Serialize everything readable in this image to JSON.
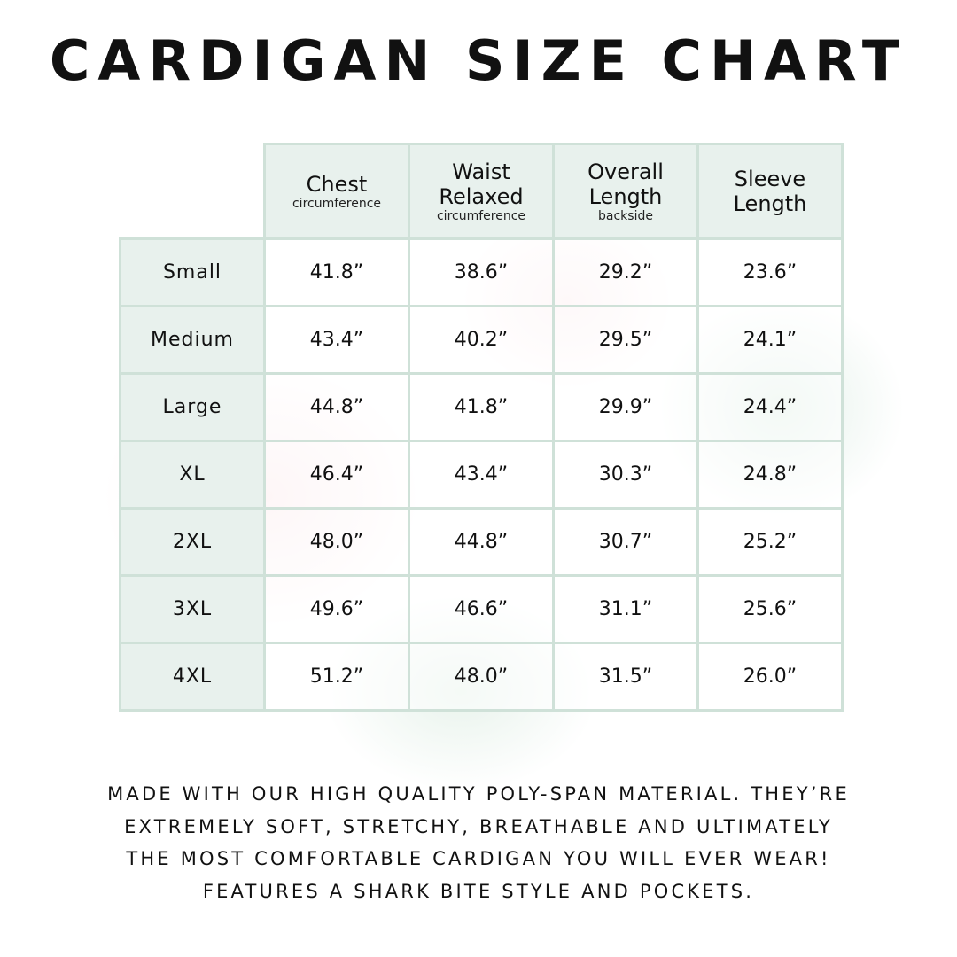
{
  "title": "CARDIGAN SIZE CHART",
  "table": {
    "headers": [
      {
        "main": "Chest",
        "sub": "circumference"
      },
      {
        "main": "Waist Relaxed",
        "sub": "circumference"
      },
      {
        "main": "Overall Length",
        "sub": "backside"
      },
      {
        "main": "Sleeve Length",
        "sub": ""
      }
    ],
    "rows": [
      {
        "size": "Small",
        "values": [
          "41.8”",
          "38.6”",
          "29.2”",
          "23.6”"
        ]
      },
      {
        "size": "Medium",
        "values": [
          "43.4”",
          "40.2”",
          "29.5”",
          "24.1”"
        ]
      },
      {
        "size": "Large",
        "values": [
          "44.8”",
          "41.8”",
          "29.9”",
          "24.4”"
        ]
      },
      {
        "size": "XL",
        "values": [
          "46.4”",
          "43.4”",
          "30.3”",
          "24.8”"
        ]
      },
      {
        "size": "2XL",
        "values": [
          "48.0”",
          "44.8”",
          "30.7”",
          "25.2”"
        ]
      },
      {
        "size": "3XL",
        "values": [
          "49.6”",
          "46.6”",
          "31.1”",
          "25.6”"
        ]
      },
      {
        "size": "4XL",
        "values": [
          "51.2”",
          "48.0”",
          "31.5”",
          "26.0”"
        ]
      }
    ]
  },
  "description": [
    "Made with our high quality poly-span material. They’re",
    "extremely soft, stretchy, breathable and ultimately",
    "the most comfortable cardigan you will ever wear!",
    "Features a shark bite style and pockets."
  ],
  "colors": {
    "header_bg": "#e8f1ed",
    "border": "#cfe1d8"
  }
}
